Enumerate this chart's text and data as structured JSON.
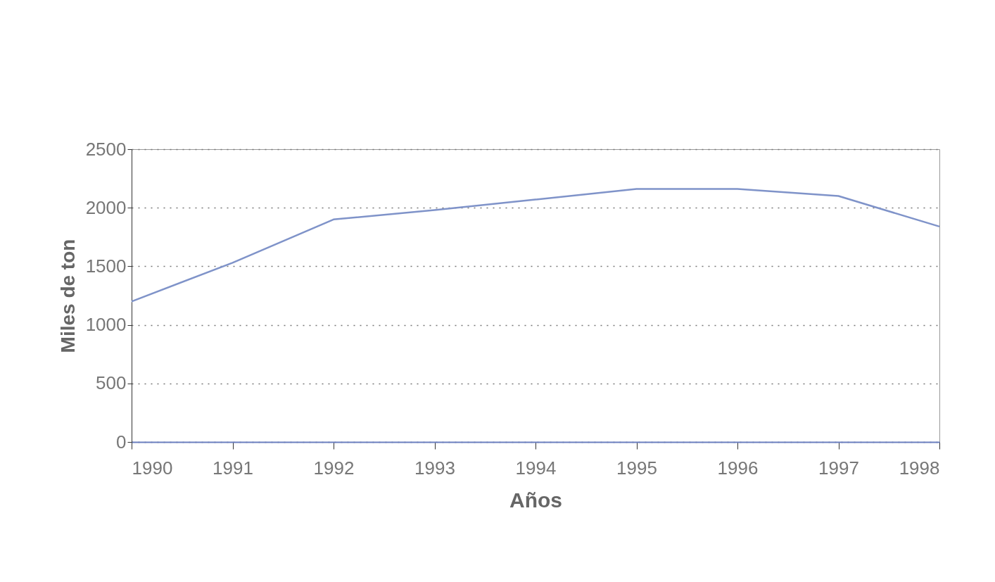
{
  "chart_data": {
    "type": "line",
    "xlabel": "Años",
    "ylabel": "Miles de ton",
    "x": [
      1990,
      1991,
      1992,
      1993,
      1994,
      1995,
      1996,
      1997,
      1998
    ],
    "series": [
      {
        "color": "#7f93c9",
        "values": [
          1200,
          1530,
          1900,
          1980,
          2070,
          2160,
          2160,
          2100,
          1840
        ]
      }
    ],
    "xlim": [
      1990,
      1998
    ],
    "xticks": [
      1990,
      1991,
      1992,
      1993,
      1994,
      1995,
      1996,
      1997,
      1998
    ],
    "ylim": [
      0,
      2500
    ],
    "yticks": [
      0,
      500,
      1000,
      1500,
      2000,
      2500
    ],
    "grid": "y",
    "marker": "none",
    "line_style": "solid"
  }
}
